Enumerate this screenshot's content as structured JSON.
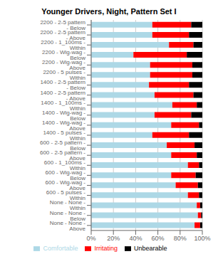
{
  "chart_data": {
    "type": "bar",
    "title": "Younger Drivers, Night, Pattern Set I",
    "orientation": "horizontal",
    "stacked": true,
    "grid": true,
    "legend": "bottom",
    "categories": [
      "2200 - 2-5 pattern - Below",
      "2200 - 2-5 pattern - Above",
      "2200 - 1_100ms - Within",
      "2200 - Wig-wag - Below",
      "2200 - Wig-wag - Above",
      "2200 - 5 pulses - Within",
      "1400 - 2-5 pattern - Below",
      "1400 - 2-5 pattern - Above",
      "1400 - 1_100ms - Within",
      "1400 - Wig-wag - Below",
      "1400 - Wig-wag - Above",
      "1400 - 5 pulses - Within",
      "600 - 2-5 pattern - Below",
      "600 - 2-5 pattern - Above",
      "600 - 1_100ms - Within",
      "600 - Wig-wag - Below",
      "600 - Wig-wag - Above",
      "600 - 5 pulses - Within",
      "None - None - Within",
      "None - None - Below",
      "None - None - Above"
    ],
    "series": [
      {
        "name": "Comfortable",
        "color": "#add8e6",
        "values": [
          55,
          55,
          70,
          38,
          53,
          53,
          52,
          57,
          73,
          57,
          72,
          55,
          68,
          72,
          87,
          72,
          76,
          87,
          95,
          96,
          93
        ]
      },
      {
        "name": "Irritating",
        "color": "#ff0000",
        "values": [
          35,
          33,
          22,
          48,
          38,
          38,
          36,
          35,
          22,
          33,
          25,
          33,
          25,
          23,
          10,
          22,
          20,
          10,
          3,
          3,
          5
        ]
      },
      {
        "name": "Unbearable",
        "color": "#000000",
        "values": [
          10,
          12,
          8,
          14,
          9,
          9,
          12,
          8,
          5,
          10,
          3,
          12,
          7,
          5,
          3,
          6,
          4,
          3,
          2,
          1,
          2
        ]
      }
    ],
    "xlim": [
      0,
      100
    ],
    "xticks": [
      {
        "value": 0,
        "label": "0%"
      },
      {
        "value": 20,
        "label": "20%"
      },
      {
        "value": 40,
        "label": "40%"
      },
      {
        "value": 60,
        "label": "60%"
      },
      {
        "value": 80,
        "label": "80%"
      },
      {
        "value": 100,
        "label": "100%"
      }
    ]
  }
}
